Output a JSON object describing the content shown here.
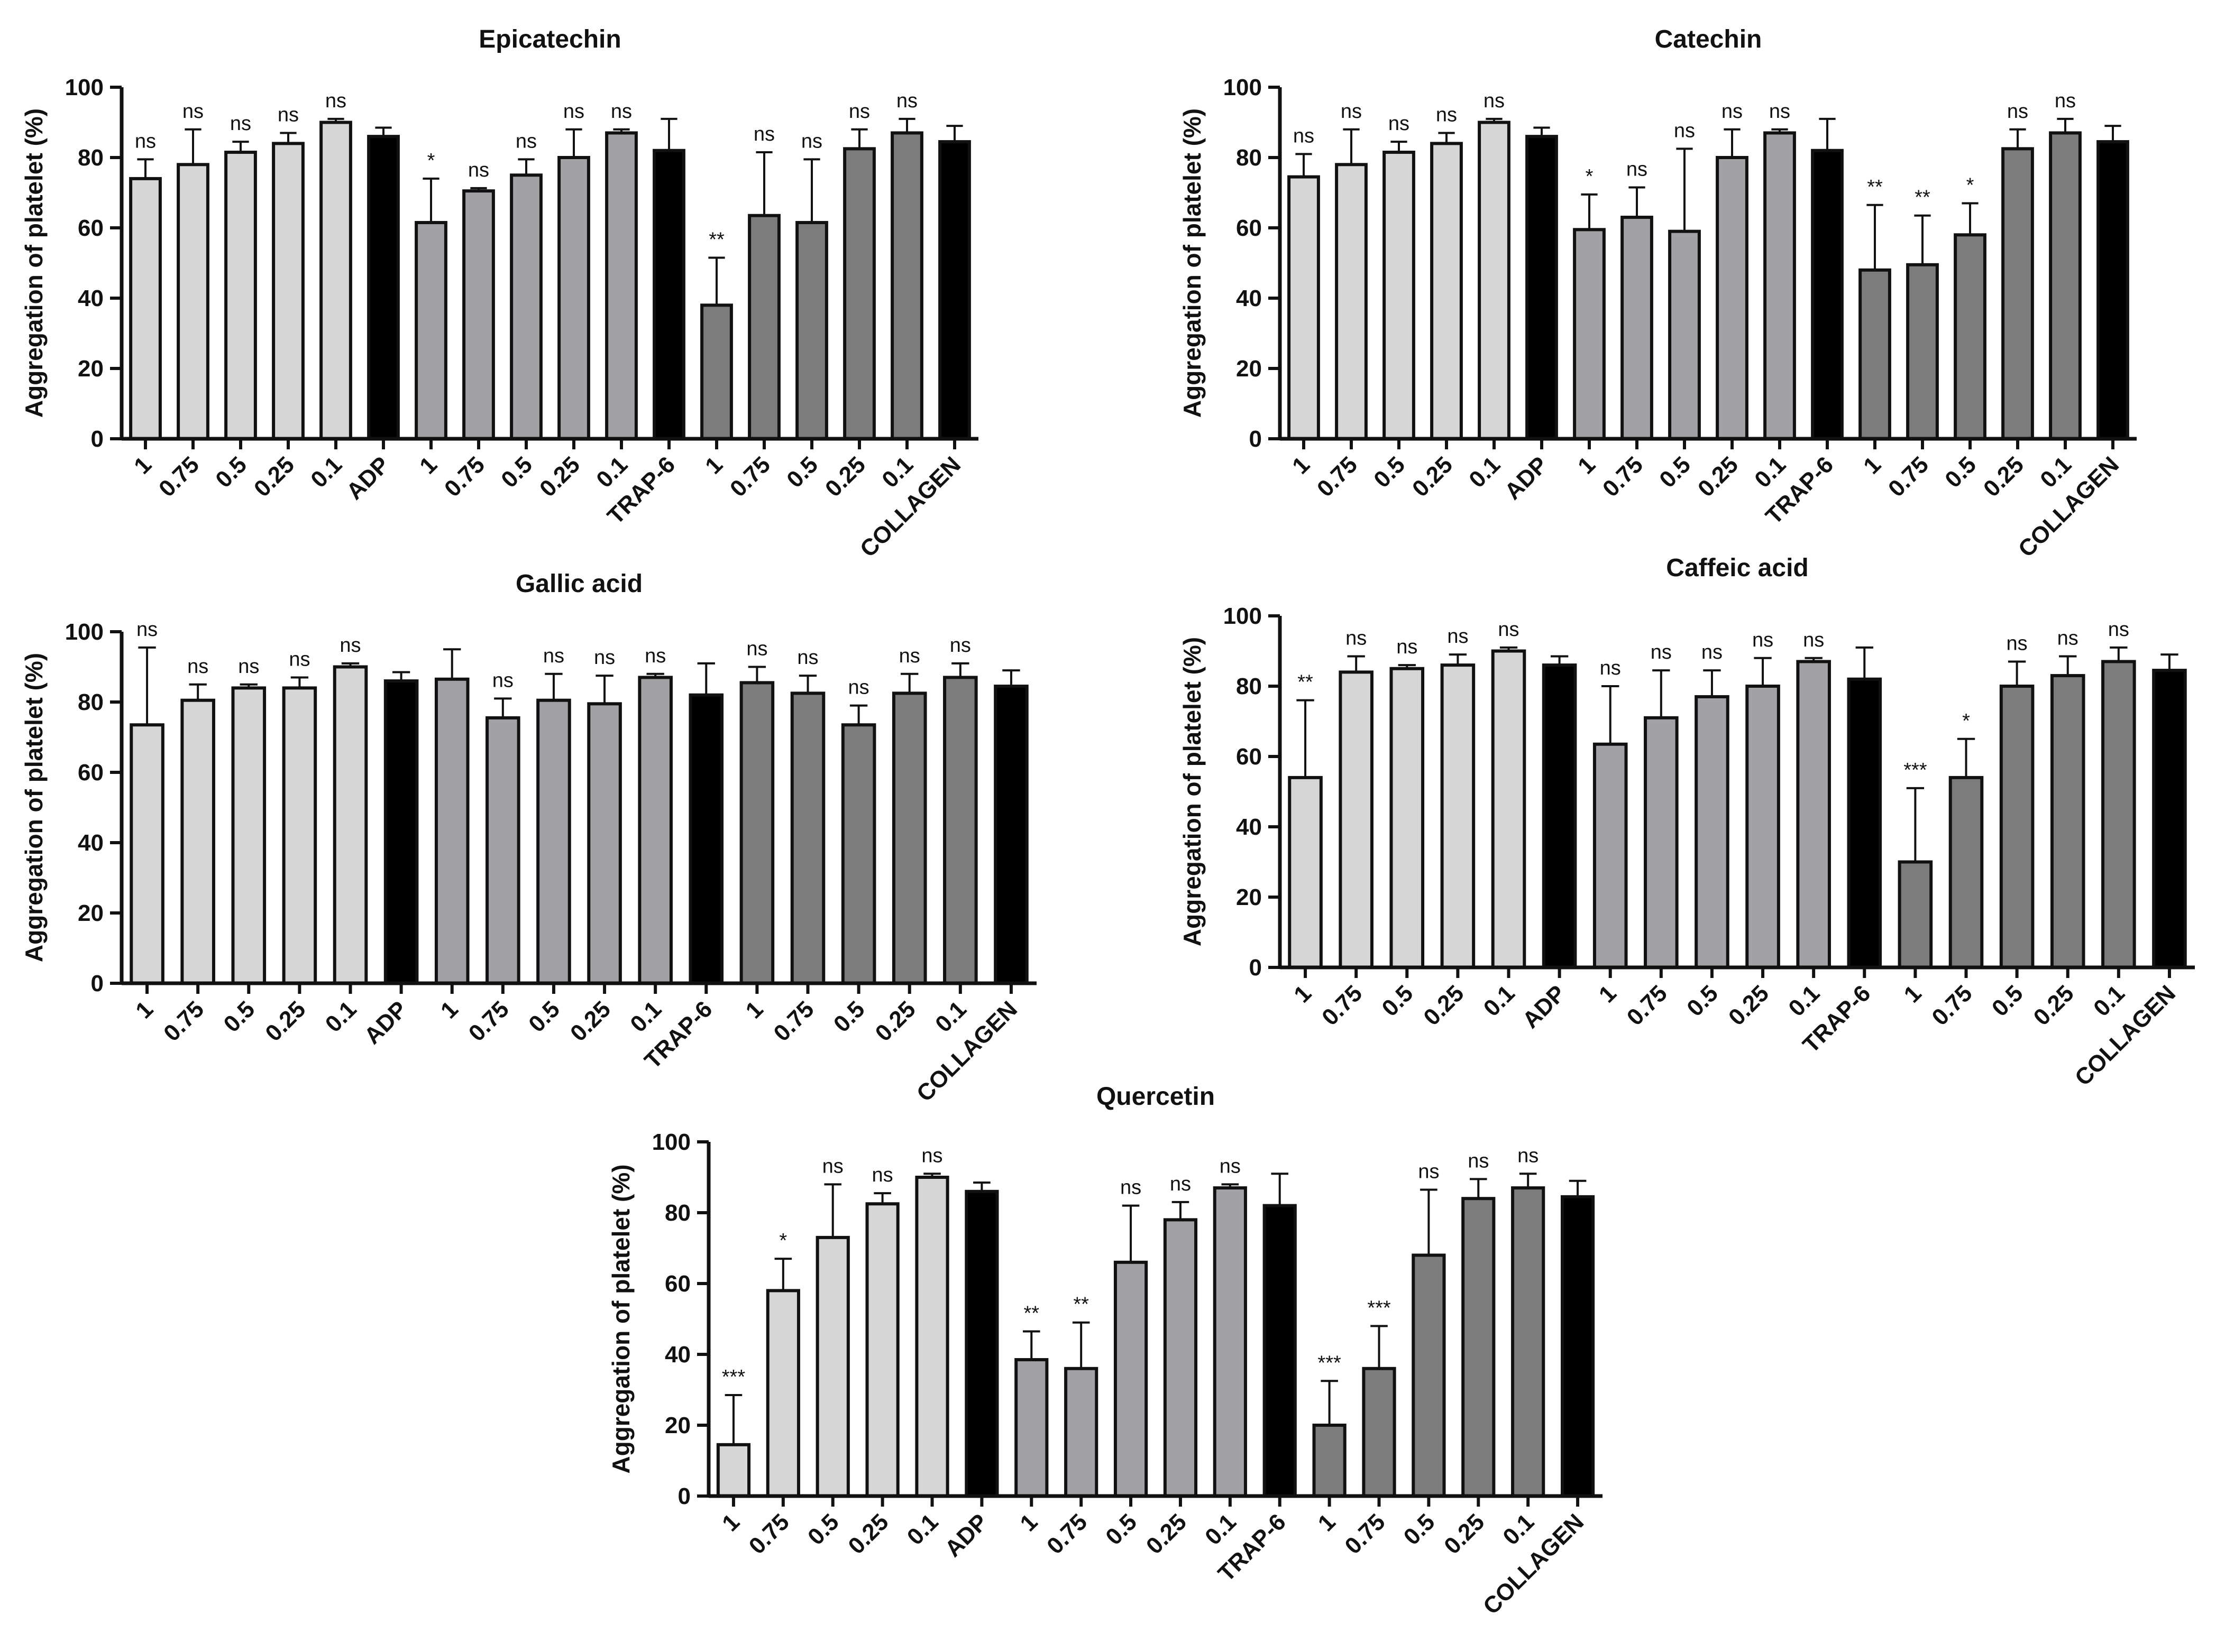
{
  "figure": {
    "colors": {
      "light": "#d6d6d6",
      "medium": "#a2a2a6",
      "dark": "#7c7c7c",
      "control": "#000000",
      "axis": "#111111"
    },
    "shared_x_labels": [
      "1",
      "0.75",
      "0.5",
      "0.25",
      "0.1",
      "ADP",
      "1",
      "0.75",
      "0.5",
      "0.25",
      "0.1",
      "TRAP-6",
      "1",
      "0.75",
      "0.5",
      "0.25",
      "0.1",
      "COLLAGEN"
    ],
    "bar_groups": [
      "light",
      "light",
      "light",
      "light",
      "light",
      "control",
      "medium",
      "medium",
      "medium",
      "medium",
      "medium",
      "control",
      "dark",
      "dark",
      "dark",
      "dark",
      "dark",
      "control"
    ]
  },
  "chart_data": [
    {
      "type": "bar",
      "title": "Epicatechin",
      "ylabel": "Aggregation of platelet (%)",
      "xlabel": "",
      "ylim": [
        0,
        100
      ],
      "yticks": [
        0,
        20,
        40,
        60,
        80,
        100
      ],
      "categories": [
        "1",
        "0.75",
        "0.5",
        "0.25",
        "0.1",
        "ADP",
        "1",
        "0.75",
        "0.5",
        "0.25",
        "0.1",
        "TRAP-6",
        "1",
        "0.75",
        "0.5",
        "0.25",
        "0.1",
        "COLLAGEN"
      ],
      "values": [
        74,
        78,
        81.5,
        84,
        90,
        86,
        61.5,
        70.5,
        75,
        80,
        87,
        82,
        38,
        63.5,
        61.5,
        82.5,
        87,
        84.5
      ],
      "errors": [
        5.5,
        10,
        3,
        3,
        1,
        2.5,
        12.5,
        0.8,
        4.5,
        8,
        1,
        9,
        13.5,
        18,
        18,
        5.5,
        4,
        4.5
      ],
      "annotations": [
        "ns",
        "ns",
        "ns",
        "ns",
        "ns",
        "",
        "*",
        "ns",
        "ns",
        "ns",
        "ns",
        "",
        "**",
        "ns",
        "ns",
        "ns",
        "ns",
        ""
      ]
    },
    {
      "type": "bar",
      "title": "Catechin",
      "ylabel": "Aggregation of platelet (%)",
      "xlabel": "",
      "ylim": [
        0,
        100
      ],
      "yticks": [
        0,
        20,
        40,
        60,
        80,
        100
      ],
      "categories": [
        "1",
        "0.75",
        "0.5",
        "0.25",
        "0.1",
        "ADP",
        "1",
        "0.75",
        "0.5",
        "0.25",
        "0.1",
        "TRAP-6",
        "1",
        "0.75",
        "0.5",
        "0.25",
        "0.1",
        "COLLAGEN"
      ],
      "values": [
        74.5,
        78,
        81.5,
        84,
        90,
        86,
        59.5,
        63,
        59,
        80,
        87,
        82,
        48,
        49.5,
        58,
        82.5,
        87,
        84.5
      ],
      "errors": [
        6.5,
        10,
        3,
        3,
        1,
        2.5,
        10,
        8.5,
        23.5,
        8,
        1,
        9,
        18.5,
        14,
        9,
        5.5,
        4,
        4.5
      ],
      "annotations": [
        "ns",
        "ns",
        "ns",
        "ns",
        "ns",
        "",
        "*",
        "ns",
        "ns",
        "ns",
        "ns",
        "",
        "**",
        "**",
        "*",
        "ns",
        "ns",
        ""
      ]
    },
    {
      "type": "bar",
      "title": "Gallic acid",
      "ylabel": "Aggregation of platelet (%)",
      "xlabel": "",
      "ylim": [
        0,
        100
      ],
      "yticks": [
        0,
        20,
        40,
        60,
        80,
        100
      ],
      "categories": [
        "1",
        "0.75",
        "0.5",
        "0.25",
        "0.1",
        "ADP",
        "1",
        "0.75",
        "0.5",
        "0.25",
        "0.1",
        "TRAP-6",
        "1",
        "0.75",
        "0.5",
        "0.25",
        "0.1",
        "COLLAGEN"
      ],
      "values": [
        73.5,
        80.5,
        84,
        84,
        90,
        86,
        86.5,
        75.5,
        80.5,
        79.5,
        87,
        82,
        85.5,
        82.5,
        73.5,
        82.5,
        87,
        84.5
      ],
      "errors": [
        22,
        4.5,
        1,
        3,
        1,
        2.5,
        8.5,
        5.5,
        7.5,
        8,
        1,
        9,
        4.5,
        5,
        5.5,
        5.5,
        4,
        4.5
      ],
      "annotations": [
        "ns",
        "ns",
        "ns",
        "ns",
        "ns",
        "",
        "",
        "ns",
        "ns",
        "ns",
        "ns",
        "",
        "ns",
        "ns",
        "ns",
        "ns",
        "ns",
        ""
      ]
    },
    {
      "type": "bar",
      "title": "Caffeic acid",
      "ylabel": "Aggregation of platelet (%)",
      "xlabel": "",
      "ylim": [
        0,
        100
      ],
      "yticks": [
        0,
        20,
        40,
        60,
        80,
        100
      ],
      "categories": [
        "1",
        "0.75",
        "0.5",
        "0.25",
        "0.1",
        "ADP",
        "1",
        "0.75",
        "0.5",
        "0.25",
        "0.1",
        "TRAP-6",
        "1",
        "0.75",
        "0.5",
        "0.25",
        "0.1",
        "COLLAGEN"
      ],
      "values": [
        54,
        84,
        85,
        86,
        90,
        86,
        63.5,
        71,
        77,
        80,
        87,
        82,
        30,
        54,
        80,
        83,
        87,
        84.5
      ],
      "errors": [
        22,
        4.5,
        1,
        3,
        1,
        2.5,
        16.5,
        13.5,
        7.5,
        8,
        1,
        9,
        21,
        11,
        7,
        5.5,
        4,
        4.5
      ],
      "annotations": [
        "**",
        "ns",
        "ns",
        "ns",
        "ns",
        "",
        "ns",
        "ns",
        "ns",
        "ns",
        "ns",
        "",
        "***",
        "*",
        "ns",
        "ns",
        "ns",
        ""
      ]
    },
    {
      "type": "bar",
      "title": "Quercetin",
      "ylabel": "Aggregation of platelet (%)",
      "xlabel": "",
      "ylim": [
        0,
        100
      ],
      "yticks": [
        0,
        20,
        40,
        60,
        80,
        100
      ],
      "categories": [
        "1",
        "0.75",
        "0.5",
        "0.25",
        "0.1",
        "ADP",
        "1",
        "0.75",
        "0.5",
        "0.25",
        "0.1",
        "TRAP-6",
        "1",
        "0.75",
        "0.5",
        "0.25",
        "0.1",
        "COLLAGEN"
      ],
      "values": [
        14.5,
        58,
        73,
        82.5,
        90,
        86,
        38.5,
        36,
        66,
        78,
        87,
        82,
        20,
        36,
        68,
        84,
        87,
        84.5
      ],
      "errors": [
        14,
        9,
        15,
        3,
        1,
        2.5,
        8,
        13,
        16,
        5,
        1,
        9,
        12.5,
        12,
        18.5,
        5.5,
        4,
        4.5
      ],
      "annotations": [
        "***",
        "*",
        "ns",
        "ns",
        "ns",
        "",
        "**",
        "**",
        "ns",
        "ns",
        "ns",
        "",
        "***",
        "***",
        "ns",
        "ns",
        "ns",
        ""
      ]
    }
  ]
}
